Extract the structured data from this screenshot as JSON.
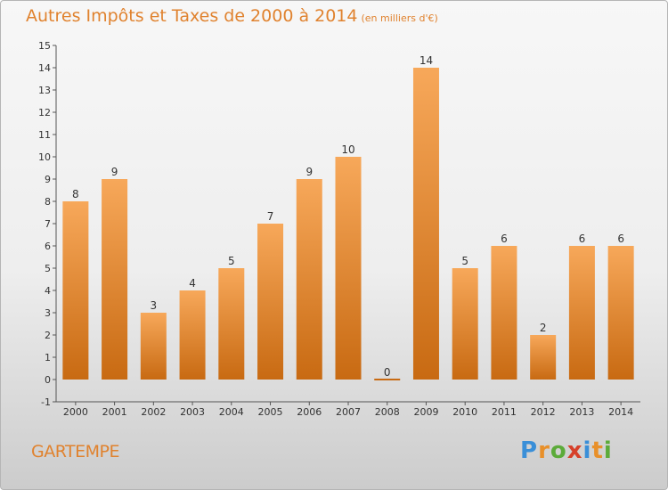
{
  "title": "Autres Impôts et Taxes de 2000 à 2014",
  "unit": "(en milliers d'€)",
  "place": "GARTEMPE",
  "logo": {
    "letters": [
      "P",
      "r",
      "o",
      "x",
      "i",
      "t",
      "i"
    ],
    "colors": [
      "#3a8fd8",
      "#e8902a",
      "#5cab3a",
      "#d6402a",
      "#3a8fd8",
      "#e8902a",
      "#5cab3a"
    ]
  },
  "colors": {
    "bar": "#ef8a2c",
    "bar_light": "#f7a85a",
    "bar_dark": "#c86a12",
    "title": "#e0822e"
  },
  "chart_data": {
    "type": "bar",
    "categories": [
      "2000",
      "2001",
      "2002",
      "2003",
      "2004",
      "2005",
      "2006",
      "2007",
      "2008",
      "2009",
      "2010",
      "2011",
      "2012",
      "2013",
      "2014"
    ],
    "values": [
      8,
      9,
      3,
      4,
      5,
      7,
      9,
      10,
      0,
      14,
      5,
      6,
      2,
      6,
      6
    ],
    "data_labels": [
      "8",
      "9",
      "3",
      "4",
      "5",
      "7",
      "9",
      "10",
      "0",
      "14",
      "5",
      "6",
      "2",
      "6",
      "6"
    ],
    "ylim": [
      -1,
      15
    ],
    "yticks": [
      -1,
      0,
      1,
      2,
      3,
      4,
      5,
      6,
      7,
      8,
      9,
      10,
      11,
      12,
      13,
      14,
      15
    ],
    "xlabel": "",
    "ylabel": "",
    "grid": false
  }
}
